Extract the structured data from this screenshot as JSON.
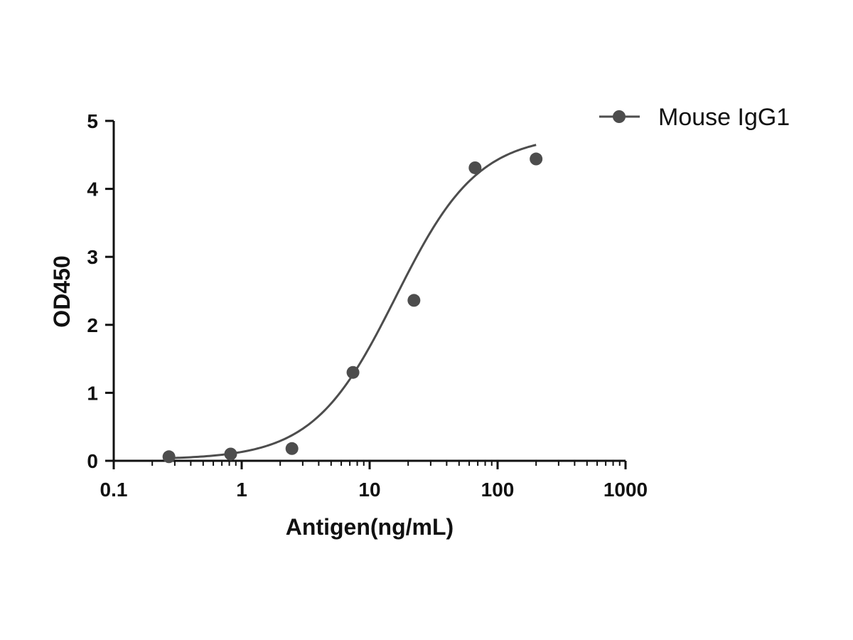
{
  "chart_data": {
    "type": "scatter",
    "xlabel": "Antigen(ng/mL)",
    "ylabel": "OD450",
    "x_scale": "log",
    "xlim": [
      0.1,
      1000
    ],
    "ylim": [
      0,
      5
    ],
    "x_ticks": [
      0.1,
      1,
      10,
      100,
      1000
    ],
    "x_tick_labels": [
      "0.1",
      "1",
      "10",
      "100",
      "1000"
    ],
    "y_ticks": [
      0,
      1,
      2,
      3,
      4,
      5
    ],
    "y_tick_labels": [
      "0",
      "1",
      "2",
      "3",
      "4",
      "5"
    ],
    "legend_position": "top-right",
    "grid": false,
    "series": [
      {
        "name": "Mouse IgG1",
        "color": "#4d4d4d",
        "x": [
          0.27,
          0.82,
          2.47,
          7.41,
          22.2,
          66.7,
          200
        ],
        "y": [
          0.06,
          0.1,
          0.18,
          1.3,
          2.36,
          4.31,
          4.44
        ],
        "fit": {
          "model": "4PL",
          "bottom": 0.02,
          "top": 4.8,
          "ec50": 16,
          "hill": 1.35,
          "x_range": [
            0.27,
            200
          ]
        }
      }
    ]
  }
}
